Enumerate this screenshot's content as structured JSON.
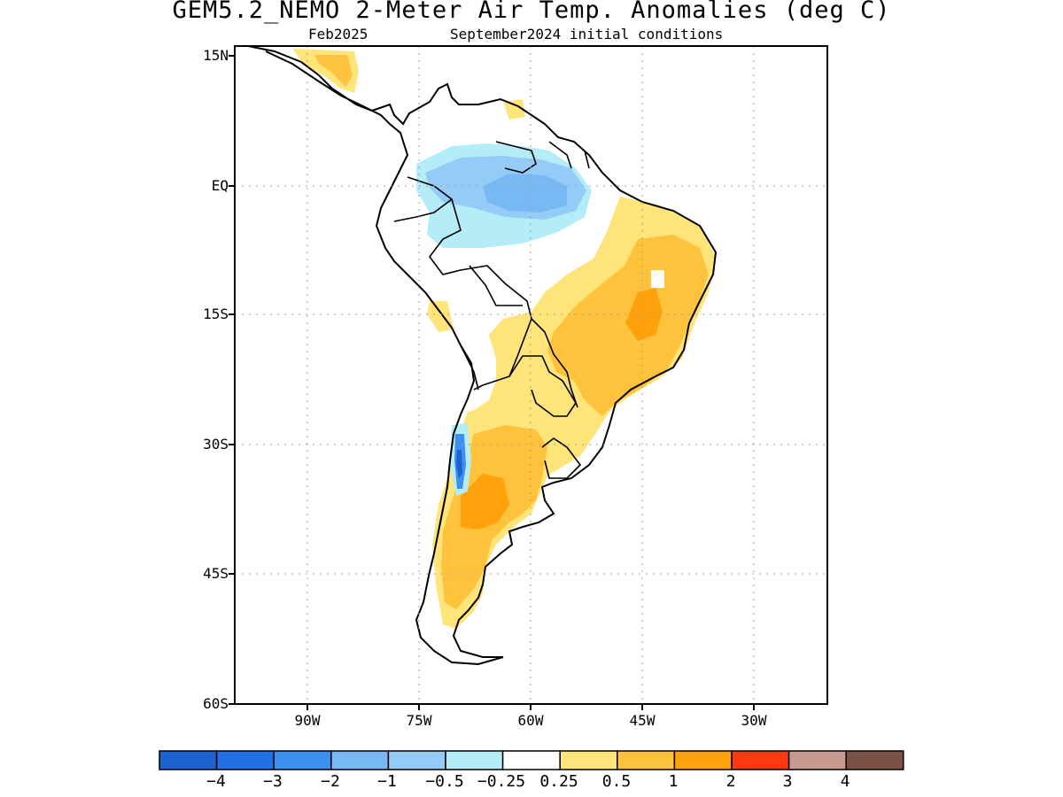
{
  "title": "GEM5.2_NEMO 2-Meter Air Temp. Anomalies (deg C)",
  "subtitle_left": "Feb2025",
  "subtitle_right": "September2024 initial conditions",
  "y_axis": {
    "ticks": [
      "15N",
      "EQ",
      "15S",
      "30S",
      "45S",
      "60S"
    ]
  },
  "x_axis": {
    "ticks": [
      "90W",
      "75W",
      "60W",
      "45W",
      "30W"
    ]
  },
  "colorbar": {
    "labels": [
      "−4",
      "−3",
      "−2",
      "−1",
      "−0.5",
      "−0.25",
      "0.25",
      "0.5",
      "1",
      "2",
      "3",
      "4"
    ],
    "colors": [
      "#1b63d0",
      "#2170e6",
      "#3d90f0",
      "#78b8f5",
      "#95cbf7",
      "#b4ecf7",
      "#ffffff",
      "#ffe47a",
      "#ffc23c",
      "#ffa10b",
      "#ff3a10",
      "#c89a90",
      "#7a5144"
    ]
  },
  "anomaly_colors": {
    "cool_light": "#b4ecf7",
    "cool_mid": "#95cbf7",
    "cool_strong": "#78b8f5",
    "warm_light": "#ffe47a",
    "warm_mid": "#ffc23c",
    "warm_strong": "#ffa10b"
  }
}
